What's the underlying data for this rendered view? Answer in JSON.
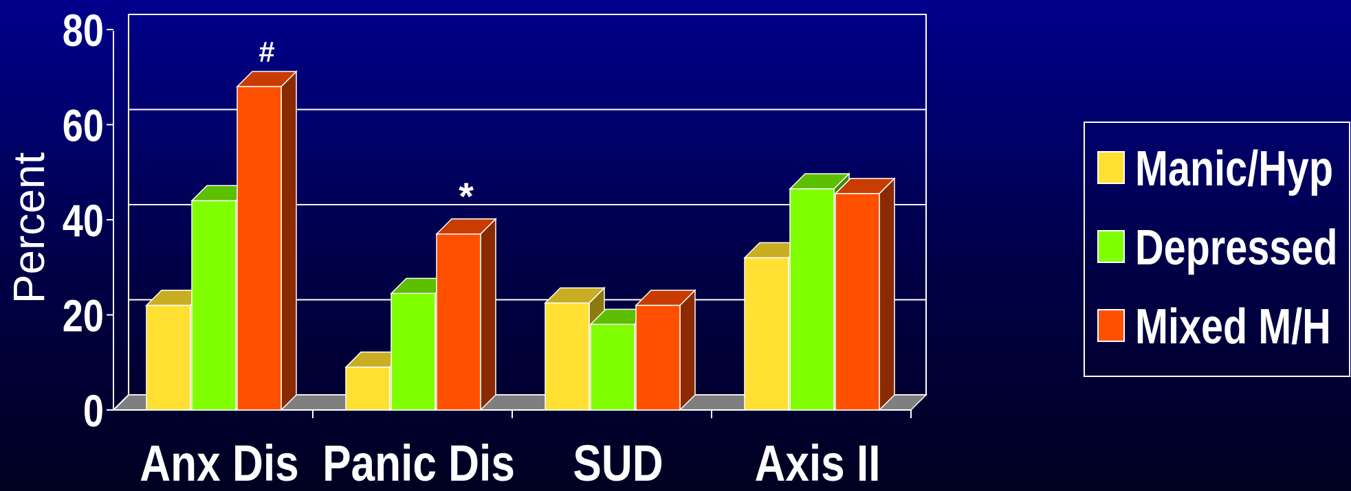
{
  "chart_data": {
    "type": "bar",
    "title": "",
    "xlabel": "",
    "ylabel": "Percent",
    "ylim": [
      0,
      80
    ],
    "yticks": [
      "0",
      "20",
      "40",
      "60",
      "80"
    ],
    "categories": [
      "Anx Dis",
      "Panic Dis",
      "SUD",
      "Axis II"
    ],
    "series": [
      {
        "name": "Manic/Hyp",
        "values": [
          22,
          9,
          22.5,
          32
        ],
        "color": "#ffe033",
        "top": "#c9ad22",
        "side": "#8a7a10"
      },
      {
        "name": "Depressed",
        "values": [
          44,
          24.5,
          18,
          46.5
        ],
        "color": "#7fff00",
        "top": "#5cbf00",
        "side": "#3f8a00"
      },
      {
        "name": "Mixed M/H",
        "values": [
          68,
          37,
          22,
          45.5
        ],
        "color": "#ff5000",
        "top": "#c83c00",
        "side": "#8a2a00"
      }
    ],
    "annotations": [
      {
        "text": "#",
        "category": "Anx Dis",
        "series": "Mixed M/H"
      },
      {
        "text": "*",
        "category": "Panic Dis",
        "series": "Mixed M/H"
      }
    ],
    "grid": true,
    "legend_position": "right"
  }
}
